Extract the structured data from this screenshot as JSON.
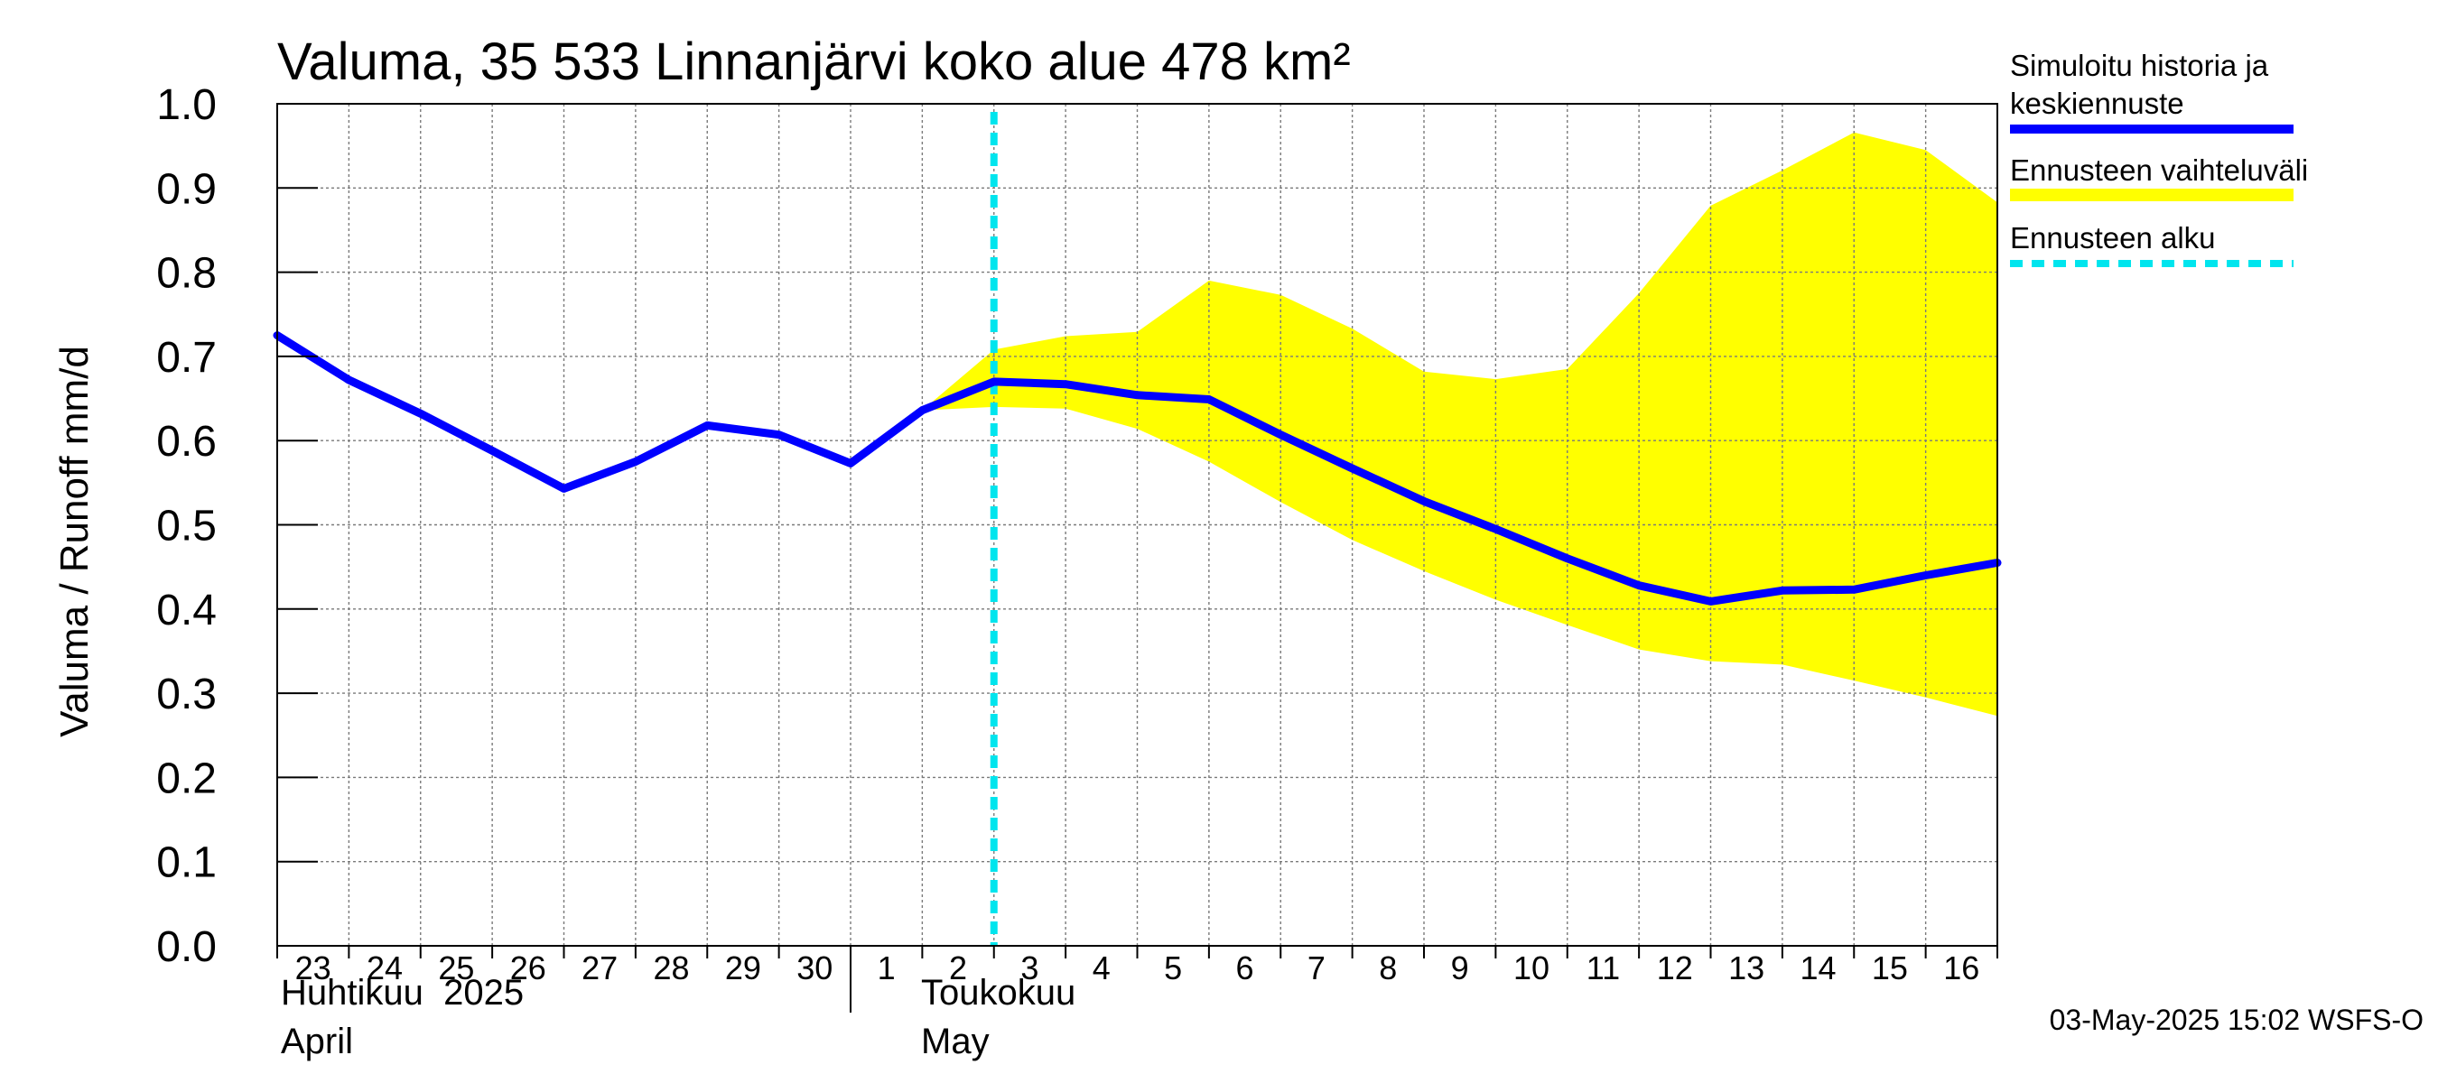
{
  "chart_data": {
    "type": "line",
    "title": "Valuma, 35 533 Linnanjärvi koko alue 478 km²",
    "ylabel": "Valuma / Runoff     mm/d",
    "ylim": [
      0.0,
      1.0
    ],
    "yticks": [
      "0.0",
      "0.1",
      "0.2",
      "0.3",
      "0.4",
      "0.5",
      "0.6",
      "0.7",
      "0.8",
      "0.9",
      "1.0"
    ],
    "x_start": "2025-04-23",
    "x_end": "2025-05-17",
    "xticks": [
      "23",
      "24",
      "25",
      "26",
      "27",
      "28",
      "29",
      "30",
      "1",
      "2",
      "3",
      "4",
      "5",
      "6",
      "7",
      "8",
      "9",
      "10",
      "11",
      "12",
      "13",
      "14",
      "15",
      "16"
    ],
    "months": [
      {
        "fi": "Huhtikuu  2025",
        "en": "April"
      },
      {
        "fi": "Toukokuu",
        "en": "May"
      }
    ],
    "grid": true,
    "legend_position": "right",
    "forecast_start": "2025-05-03",
    "series": [
      {
        "name": "Simuloitu historia ja keskiennuste",
        "color": "#0000ff",
        "x": [
          "2025-04-23",
          "2025-04-24",
          "2025-04-25",
          "2025-04-26",
          "2025-04-27",
          "2025-04-28",
          "2025-04-29",
          "2025-04-30",
          "2025-05-01",
          "2025-05-02",
          "2025-05-03",
          "2025-05-04",
          "2025-05-05",
          "2025-05-06",
          "2025-05-07",
          "2025-05-08",
          "2025-05-09",
          "2025-05-10",
          "2025-05-11",
          "2025-05-12",
          "2025-05-13",
          "2025-05-14",
          "2025-05-15",
          "2025-05-16",
          "2025-05-17"
        ],
        "values": [
          0.725,
          0.672,
          0.632,
          0.588,
          0.543,
          0.575,
          0.618,
          0.607,
          0.573,
          0.636,
          0.67,
          0.667,
          0.654,
          0.649,
          0.607,
          0.567,
          0.528,
          0.495,
          0.46,
          0.428,
          0.409,
          0.422,
          0.423,
          0.44,
          0.455
        ]
      },
      {
        "name": "Ennusteen vaihteluväli",
        "color": "#ffff00",
        "type": "band",
        "x": [
          "2025-05-02",
          "2025-05-03",
          "2025-05-04",
          "2025-05-05",
          "2025-05-06",
          "2025-05-07",
          "2025-05-08",
          "2025-05-09",
          "2025-05-10",
          "2025-05-11",
          "2025-05-12",
          "2025-05-13",
          "2025-05-14",
          "2025-05-15",
          "2025-05-16",
          "2025-05-17"
        ],
        "upper": [
          0.636,
          0.708,
          0.724,
          0.729,
          0.79,
          0.773,
          0.733,
          0.682,
          0.673,
          0.685,
          0.775,
          0.879,
          0.921,
          0.966,
          0.945,
          0.883
        ],
        "lower": [
          0.636,
          0.64,
          0.638,
          0.614,
          0.575,
          0.527,
          0.482,
          0.445,
          0.411,
          0.381,
          0.352,
          0.338,
          0.334,
          0.315,
          0.295,
          0.273
        ]
      },
      {
        "name": "Ennusteen alku",
        "color": "#00e5ee",
        "type": "vline"
      }
    ]
  },
  "footer": "03-May-2025 15:02 WSFS-O"
}
